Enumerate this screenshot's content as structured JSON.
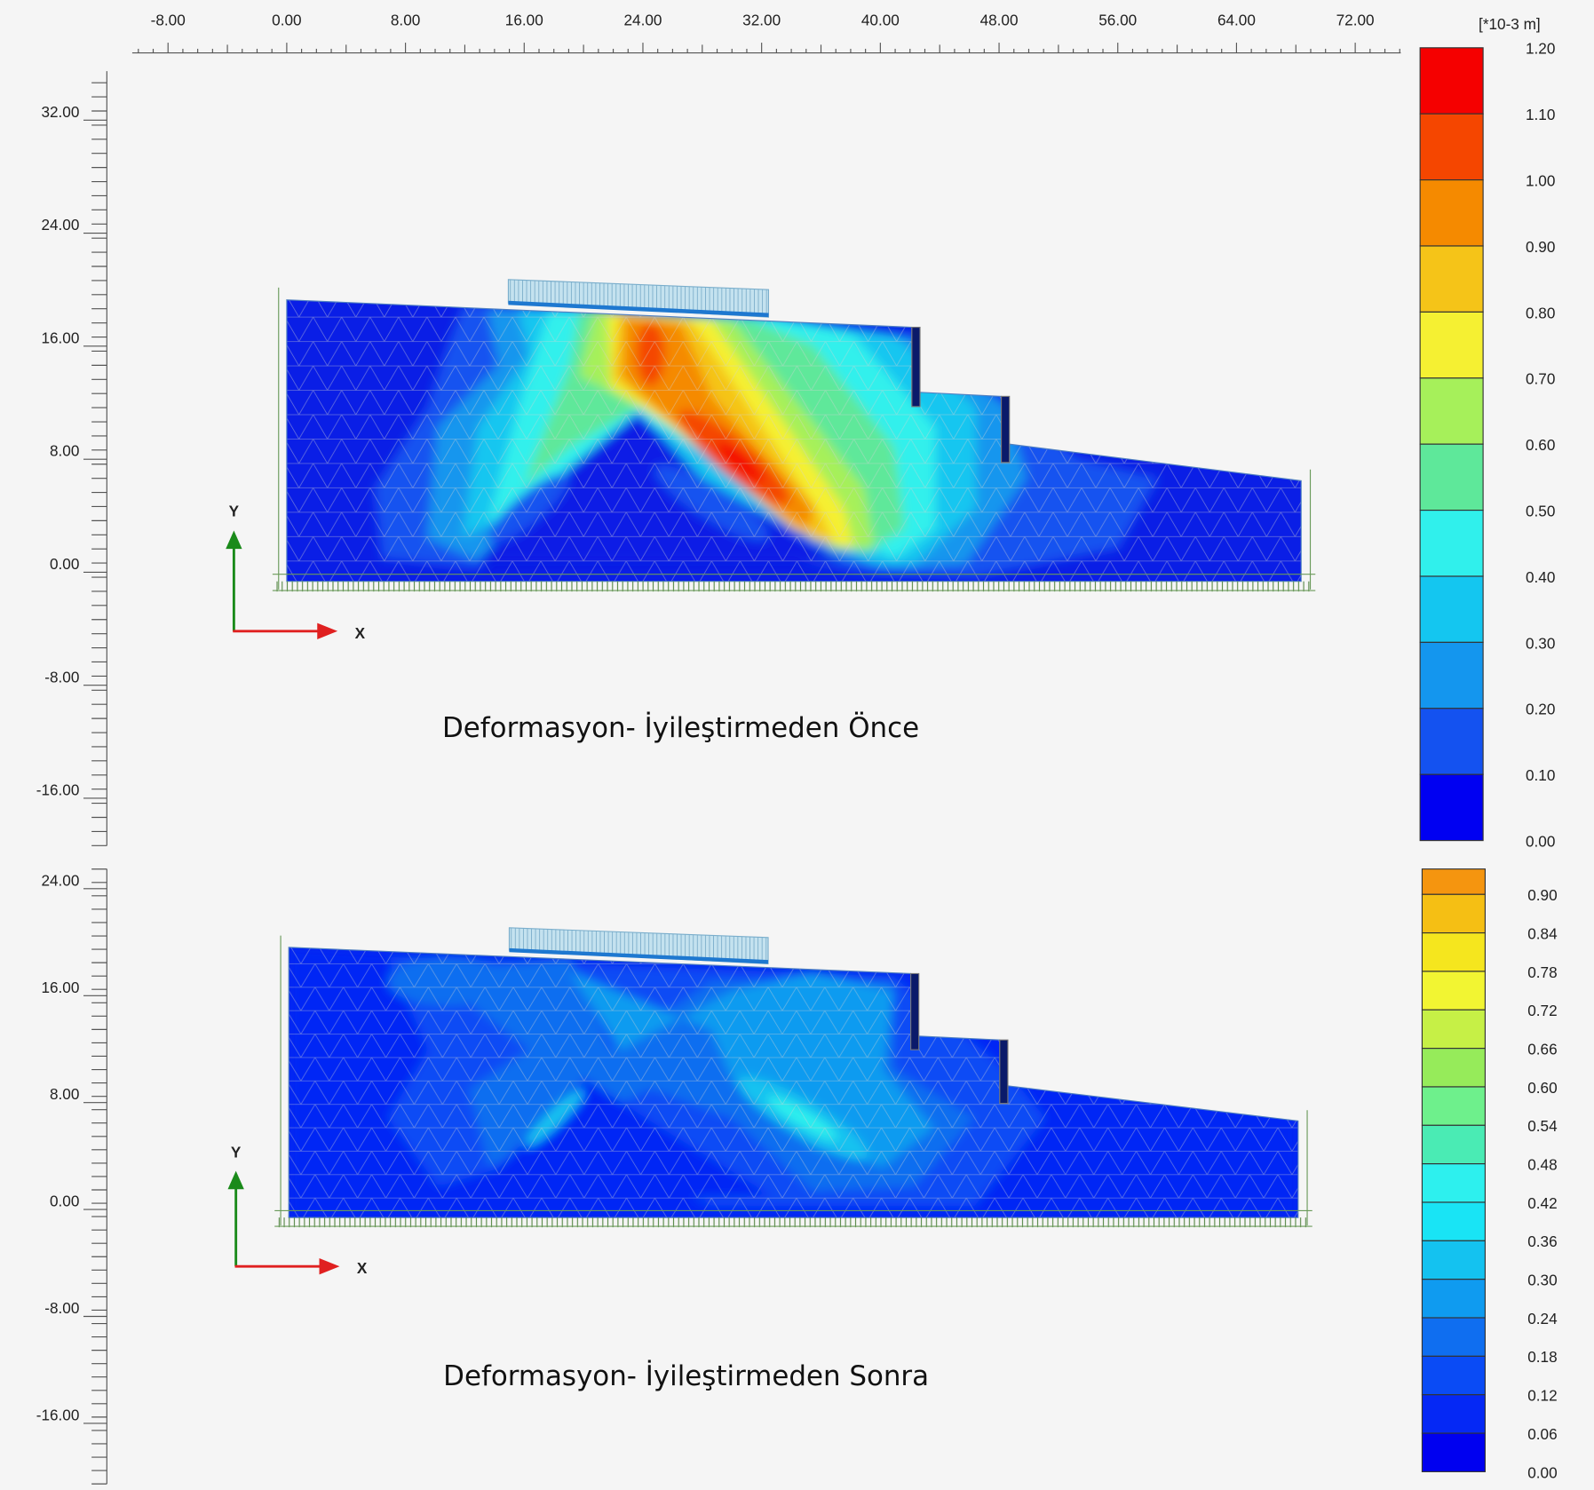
{
  "top_axis": {
    "ticks": [
      "-8.00",
      "0.00",
      "8.00",
      "16.00",
      "24.00",
      "32.00",
      "40.00",
      "48.00",
      "56.00",
      "64.00",
      "72.00"
    ],
    "values": [
      -8,
      0,
      8,
      16,
      24,
      32,
      40,
      48,
      56,
      64,
      72
    ]
  },
  "plot_before": {
    "caption": "Deformasyon- İyileştirmeden Önce",
    "y_ticks": [
      "32.00",
      "24.00",
      "16.00",
      "8.00",
      "0.00",
      "-8.00",
      "-16.00"
    ],
    "y_values": [
      32,
      24,
      16,
      8,
      0,
      -8,
      -16
    ],
    "axis_x_label": "X",
    "axis_y_label": "Y",
    "legend": {
      "unit": "[*10-3 m]",
      "labels": [
        "1.20",
        "1.10",
        "1.00",
        "0.90",
        "0.80",
        "0.70",
        "0.60",
        "0.50",
        "0.40",
        "0.30",
        "0.20",
        "0.10",
        "0.00"
      ],
      "colors": [
        "#f50000",
        "#f54600",
        "#f58a00",
        "#f5c418",
        "#f5f032",
        "#a6f05a",
        "#5ee89a",
        "#30f0ec",
        "#14c6f0",
        "#1496ee",
        "#1452f0",
        "#0000f2"
      ]
    }
  },
  "plot_after": {
    "caption": "Deformasyon- İyileştirmeden Sonra",
    "y_ticks": [
      "24.00",
      "16.00",
      "8.00",
      "0.00",
      "-8.00",
      "-16.00"
    ],
    "y_values": [
      24,
      16,
      8,
      0,
      -8,
      -16
    ],
    "axis_x_label": "X",
    "axis_y_label": "Y",
    "legend": {
      "labels": [
        "0.90",
        "0.84",
        "0.78",
        "0.72",
        "0.66",
        "0.60",
        "0.54",
        "0.48",
        "0.42",
        "0.36",
        "0.30",
        "0.24",
        "0.18",
        "0.12",
        "0.06",
        "0.00"
      ],
      "colors": [
        "#f5950f",
        "#f5bf14",
        "#f5e61e",
        "#f2f532",
        "#c6f046",
        "#96eb5a",
        "#6ef08c",
        "#4aebb4",
        "#2df0ee",
        "#19e4f5",
        "#14c2f0",
        "#0f9bf0",
        "#0f6ef0",
        "#0a4bf5",
        "#0528f5",
        "#0000f0"
      ]
    }
  }
}
